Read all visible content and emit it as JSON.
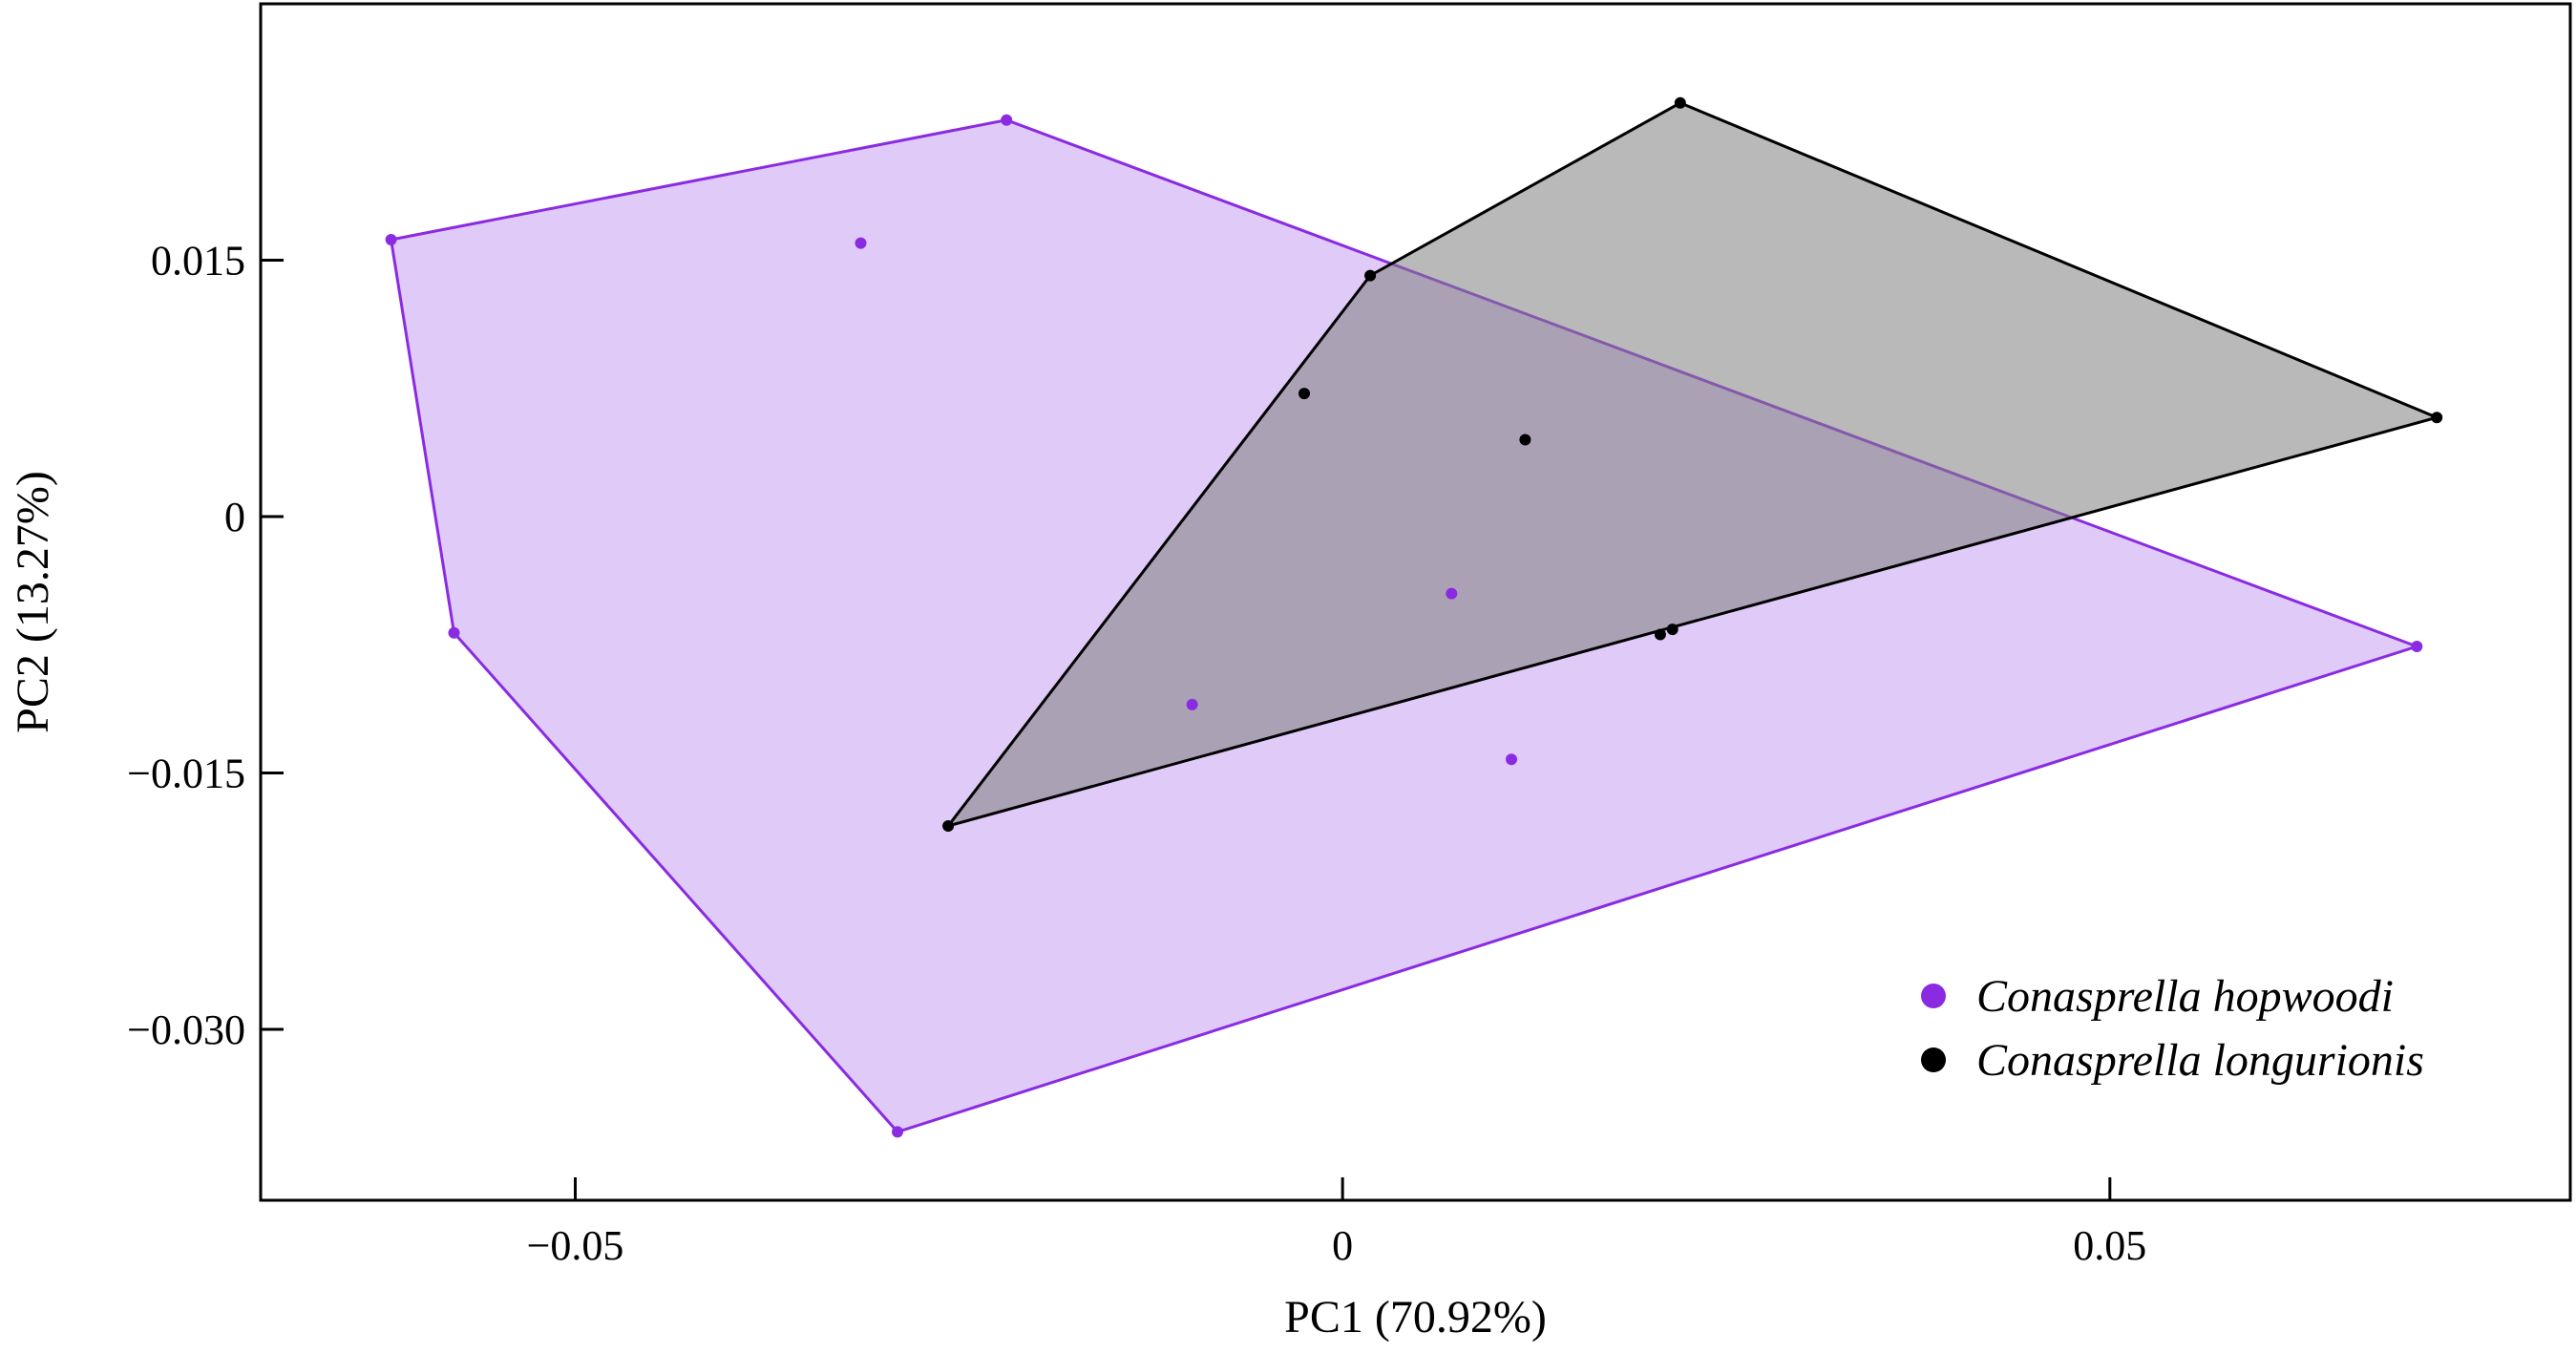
{
  "chart_data": {
    "type": "scatter",
    "title": "",
    "xlabel": "PC1 (70.92%)",
    "ylabel": "PC2 (13.27%)",
    "xlim": [
      -0.0705,
      0.08
    ],
    "ylim": [
      -0.04,
      0.03
    ],
    "xticks": [
      -0.05,
      0,
      0.05
    ],
    "xtick_labels": [
      "−0.05",
      "0",
      "0.05"
    ],
    "yticks": [
      0.015,
      0,
      -0.015,
      -0.03
    ],
    "ytick_labels": [
      "0.015",
      "0",
      "−0.015",
      "−0.030"
    ],
    "grid": false,
    "legend_position": "bottom-right",
    "convex_hulls": true,
    "series": [
      {
        "name": "Conasprella hopwoodi",
        "color": "#8a2be2",
        "fill": "#e0caf7",
        "points": [
          [
            -0.062,
            0.0162
          ],
          [
            -0.0219,
            0.0232
          ],
          [
            -0.0314,
            0.016
          ],
          [
            0.0071,
            -0.0045
          ],
          [
            -0.0098,
            -0.011
          ],
          [
            0.011,
            -0.0142
          ],
          [
            -0.0579,
            -0.0068
          ],
          [
            -0.029,
            -0.036
          ],
          [
            0.07,
            -0.0076
          ]
        ],
        "hull": [
          [
            -0.062,
            0.0162
          ],
          [
            -0.0219,
            0.0232
          ],
          [
            0.07,
            -0.0076
          ],
          [
            -0.029,
            -0.036
          ],
          [
            -0.0579,
            -0.0068
          ]
        ]
      },
      {
        "name": "Conasprella longurionis",
        "color": "#000000",
        "fill": "rgba(128,128,128,0.55)",
        "points": [
          [
            0.022,
            0.0242
          ],
          [
            0.0018,
            0.0141
          ],
          [
            0.0713,
            0.0058
          ],
          [
            -0.0025,
            0.0072
          ],
          [
            0.0119,
            0.0045
          ],
          [
            0.0207,
            -0.0069
          ],
          [
            0.0215,
            -0.0066
          ],
          [
            -0.0257,
            -0.0181
          ]
        ],
        "hull": [
          [
            0.022,
            0.0242
          ],
          [
            0.0713,
            0.0058
          ],
          [
            -0.0257,
            -0.0181
          ],
          [
            0.0018,
            0.0141
          ]
        ]
      }
    ]
  }
}
